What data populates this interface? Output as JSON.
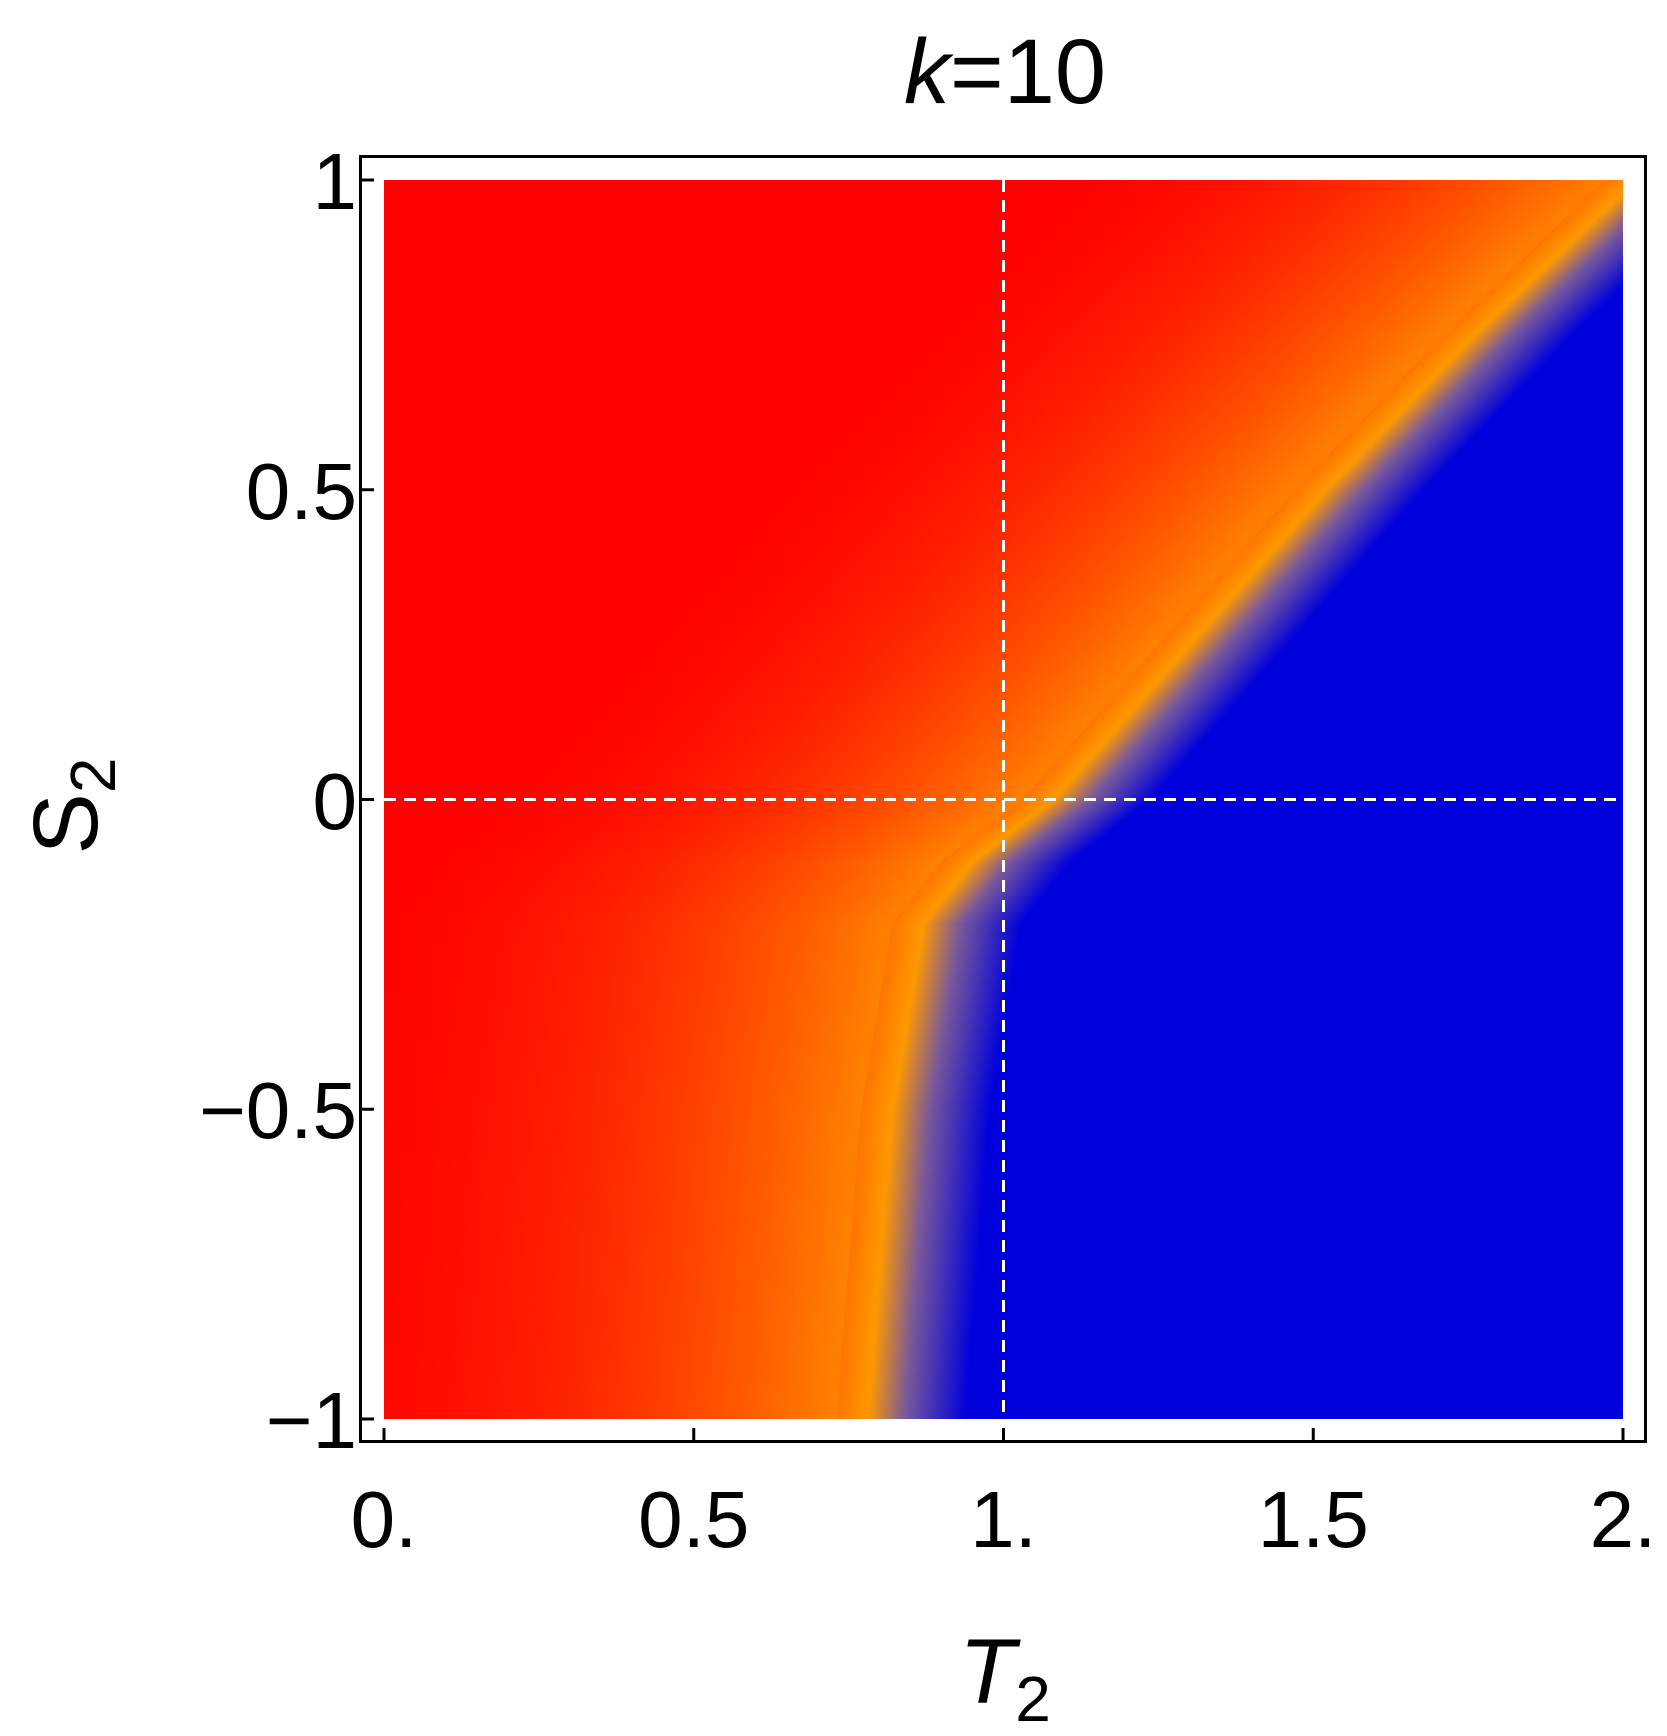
{
  "chart_data": {
    "type": "heatmap",
    "title_var": "k",
    "title_eq": "=10",
    "xlabel_main": "T",
    "xlabel_sub": "2",
    "ylabel_main": "S",
    "ylabel_sub": "2",
    "xlim": [
      0,
      2
    ],
    "ylim": [
      -1,
      1
    ],
    "xticks": [
      0,
      0.5,
      1,
      1.5,
      2
    ],
    "xtick_labels": [
      "0.",
      "0.5",
      "1.",
      "1.5",
      "2."
    ],
    "yticks": [
      -1,
      -0.5,
      0,
      0.5,
      1
    ],
    "ytick_labels": [
      "−1",
      "−0.5",
      "0",
      "0.5",
      "1"
    ],
    "reference_lines": {
      "x": 1,
      "y": 0,
      "style": "dashed",
      "color": "#ffffff"
    },
    "boundary": {
      "description_S": [
        -1,
        -0.5,
        -0.2,
        -0.1,
        0,
        0.25,
        0.5,
        0.75,
        1
      ],
      "T": [
        0.78,
        0.82,
        0.87,
        0.95,
        1.08,
        1.3,
        1.52,
        1.76,
        2.02
      ]
    },
    "colors": {
      "red": "#ff0000",
      "orange": "#ff9900",
      "blue": "#0000dd",
      "mid": "#7a5a9a"
    }
  }
}
